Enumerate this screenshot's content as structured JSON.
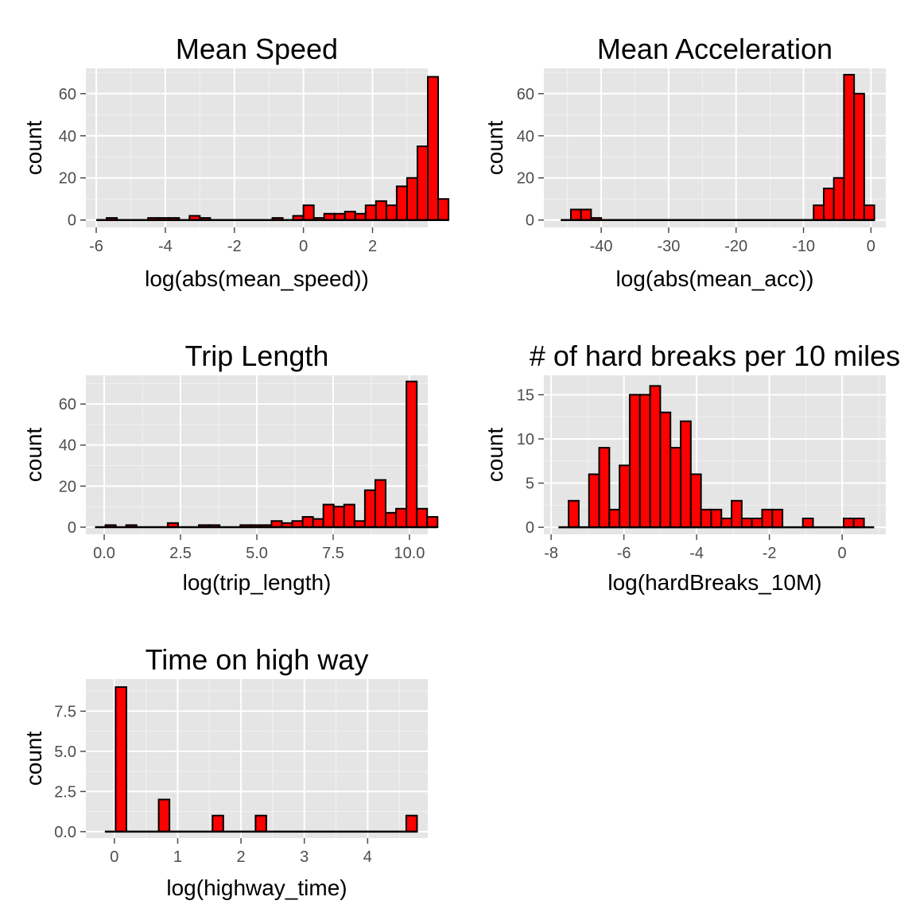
{
  "chart_data": [
    {
      "type": "bar",
      "title": "Mean Speed",
      "xlabel": "log(abs(mean_speed))",
      "ylabel": "count",
      "xlim": [
        -6.3,
        3.6
      ],
      "ylim": [
        -3.5,
        72
      ],
      "bin_width": 0.3,
      "x_ticks": [
        {
          "value": -6,
          "label": "-6"
        },
        {
          "value": -4,
          "label": "-4"
        },
        {
          "value": -2,
          "label": "-2"
        },
        {
          "value": 0,
          "label": "0"
        },
        {
          "value": 2,
          "label": "2"
        }
      ],
      "y_ticks": [
        {
          "value": 0,
          "label": "0"
        },
        {
          "value": 20,
          "label": "20"
        },
        {
          "value": 40,
          "label": "40"
        },
        {
          "value": 60,
          "label": "60"
        }
      ],
      "bins_start": -6.0,
      "values": [
        0,
        1,
        0,
        0,
        0,
        1,
        1,
        1,
        0,
        2,
        1,
        0,
        0,
        0,
        0,
        0,
        0,
        1,
        0,
        2,
        7,
        1,
        3,
        3,
        4,
        3,
        7,
        9,
        7,
        16,
        20,
        35,
        68,
        10
      ]
    },
    {
      "type": "bar",
      "title": "Mean Acceleration",
      "xlabel": "log(abs(mean_acc))",
      "ylabel": "count",
      "xlim": [
        -48.5,
        2.2
      ],
      "ylim": [
        -3.5,
        72
      ],
      "bin_width": 1.5,
      "x_ticks": [
        {
          "value": -40,
          "label": "-40"
        },
        {
          "value": -30,
          "label": "-30"
        },
        {
          "value": -20,
          "label": "-20"
        },
        {
          "value": -10,
          "label": "-10"
        },
        {
          "value": 0,
          "label": "0"
        }
      ],
      "y_ticks": [
        {
          "value": 0,
          "label": "0"
        },
        {
          "value": 20,
          "label": "20"
        },
        {
          "value": 40,
          "label": "40"
        },
        {
          "value": 60,
          "label": "60"
        }
      ],
      "bins_start": -46.0,
      "values": [
        0,
        5,
        5,
        1,
        0,
        0,
        0,
        0,
        0,
        0,
        0,
        0,
        0,
        0,
        0,
        0,
        0,
        0,
        0,
        0,
        0,
        0,
        0,
        0,
        0,
        7,
        15,
        20,
        69,
        60,
        7
      ]
    },
    {
      "type": "bar",
      "title": "Trip Length",
      "xlabel": "log(trip_length)",
      "ylabel": "count",
      "xlim": [
        -0.6,
        10.6
      ],
      "ylim": [
        -3.5,
        74
      ],
      "bin_width": 0.34,
      "x_ticks": [
        {
          "value": 0,
          "label": "0.0"
        },
        {
          "value": 2.5,
          "label": "2.5"
        },
        {
          "value": 5,
          "label": "5.0"
        },
        {
          "value": 7.5,
          "label": "7.5"
        },
        {
          "value": 10,
          "label": "10.0"
        }
      ],
      "y_ticks": [
        {
          "value": 0,
          "label": "0"
        },
        {
          "value": 20,
          "label": "20"
        },
        {
          "value": 40,
          "label": "40"
        },
        {
          "value": 60,
          "label": "60"
        }
      ],
      "bins_start": -0.3,
      "values": [
        0,
        1,
        0,
        1,
        0,
        0,
        0,
        2,
        0,
        0,
        1,
        1,
        0,
        0,
        1,
        1,
        1,
        3,
        2,
        3,
        5,
        4,
        11,
        10,
        11,
        3,
        18,
        23,
        7,
        9,
        71,
        9,
        5
      ]
    },
    {
      "type": "bar",
      "title": "# of hard breaks per 10 miles",
      "xlabel": "log(hardBreaks_10M)",
      "ylabel": "count",
      "xlim": [
        -8.2,
        1.2
      ],
      "ylim": [
        -0.8,
        17.2
      ],
      "bin_width": 0.28,
      "x_ticks": [
        {
          "value": -8,
          "label": "-8"
        },
        {
          "value": -6,
          "label": "-6"
        },
        {
          "value": -4,
          "label": "-4"
        },
        {
          "value": -2,
          "label": "-2"
        },
        {
          "value": 0,
          "label": "0"
        }
      ],
      "y_ticks": [
        {
          "value": 0,
          "label": "0"
        },
        {
          "value": 5,
          "label": "5"
        },
        {
          "value": 10,
          "label": "10"
        },
        {
          "value": 15,
          "label": "15"
        }
      ],
      "bins_start": -7.8,
      "values": [
        0,
        3,
        0,
        6,
        9,
        2,
        7,
        15,
        15,
        16,
        13,
        9,
        12,
        6,
        2,
        2,
        1,
        3,
        1,
        1,
        2,
        2,
        0,
        0,
        1,
        0,
        0,
        0,
        1,
        1,
        0
      ]
    },
    {
      "type": "bar",
      "title": "Time on high way",
      "xlabel": "log(highway_time)",
      "ylabel": "count",
      "xlim": [
        -0.45,
        4.95
      ],
      "ylim": [
        -0.4,
        9.5
      ],
      "bin_width": 0.17,
      "x_ticks": [
        {
          "value": 0,
          "label": "0"
        },
        {
          "value": 1,
          "label": "1"
        },
        {
          "value": 2,
          "label": "2"
        },
        {
          "value": 3,
          "label": "3"
        },
        {
          "value": 4,
          "label": "4"
        }
      ],
      "y_ticks": [
        {
          "value": 0,
          "label": "0.0"
        },
        {
          "value": 2.5,
          "label": "2.5"
        },
        {
          "value": 5,
          "label": "5.0"
        },
        {
          "value": 7.5,
          "label": "7.5"
        }
      ],
      "bins_start": -0.15,
      "values": [
        0,
        9,
        0,
        0,
        0,
        2,
        0,
        0,
        0,
        0,
        1,
        0,
        0,
        0,
        1,
        0,
        0,
        0,
        0,
        0,
        0,
        0,
        0,
        0,
        0,
        0,
        0,
        0,
        1
      ]
    }
  ]
}
